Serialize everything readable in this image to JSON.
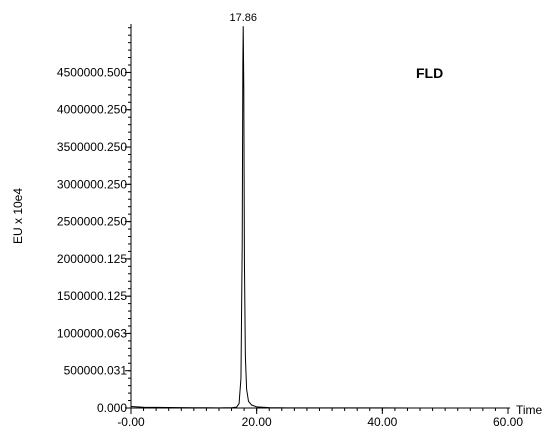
{
  "chart_data": {
    "type": "line",
    "detector_label": "FLD",
    "xlabel": "Time",
    "ylabel": "EU x 10e4",
    "xlim": [
      0,
      60
    ],
    "ylim": [
      0,
      5150000
    ],
    "x_ticks": [
      {
        "value": 0,
        "label": "-0.00"
      },
      {
        "value": 20,
        "label": "20.00"
      },
      {
        "value": 40,
        "label": "40.00"
      },
      {
        "value": 60,
        "label": "60.00"
      }
    ],
    "y_ticks": [
      {
        "value": 0,
        "label": "0.000"
      },
      {
        "value": 500000.031,
        "label": "500000.031"
      },
      {
        "value": 1000000.063,
        "label": "1000000.063"
      },
      {
        "value": 1500000.125,
        "label": "1500000.125"
      },
      {
        "value": 2000000.125,
        "label": "2000000.125"
      },
      {
        "value": 2500000.25,
        "label": "2500000.250"
      },
      {
        "value": 3000000.25,
        "label": "3000000.250"
      },
      {
        "value": 3500000.25,
        "label": "3500000.250"
      },
      {
        "value": 4000000.25,
        "label": "4000000.250"
      },
      {
        "value": 4500000.5,
        "label": "4500000.500"
      }
    ],
    "peaks": [
      {
        "time": 17.86,
        "label": "17.86",
        "height": 5120000
      }
    ],
    "series": [
      {
        "x": [
          0,
          2,
          4,
          6,
          8,
          10,
          12,
          14,
          15,
          16,
          16.8,
          17.2,
          17.5,
          17.7,
          17.8,
          17.86,
          17.95,
          18.05,
          18.2,
          18.4,
          18.7,
          19.2,
          20,
          22,
          25,
          30,
          35,
          40,
          45,
          50,
          55,
          60
        ],
        "y": [
          20000,
          10000,
          8000,
          6000,
          5000,
          4000,
          3000,
          1500,
          3000,
          4000,
          12000,
          60000,
          400000,
          2200000,
          4600000,
          5120000,
          4300000,
          2000000,
          700000,
          250000,
          90000,
          40000,
          15000,
          5000,
          2000,
          1000,
          1000,
          1000,
          800,
          600,
          500,
          400
        ]
      }
    ]
  }
}
